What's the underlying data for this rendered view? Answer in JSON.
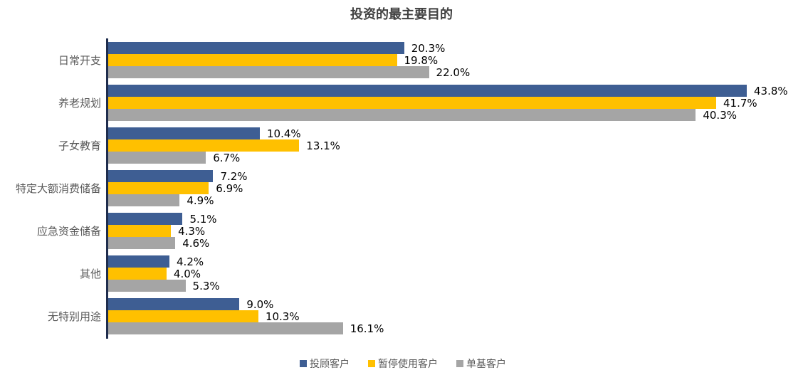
{
  "chart_data": {
    "type": "bar",
    "orientation": "horizontal",
    "title": "投资的最主要目的",
    "xlabel": "",
    "ylabel": "",
    "categories": [
      "日常开支",
      "养老规划",
      "子女教育",
      "特定大额消费储备",
      "应急资金储备",
      "其他",
      "无特别用途"
    ],
    "series": [
      {
        "name": "投顾客户",
        "color": "#3e5e93",
        "values": [
          20.3,
          43.8,
          10.4,
          7.2,
          5.1,
          4.2,
          9.0
        ],
        "labels": [
          "20.3%",
          "43.8%",
          "10.4%",
          "7.2%",
          "5.1%",
          "4.2%",
          "9.0%"
        ]
      },
      {
        "name": "暂停使用客户",
        "color": "#ffc000",
        "values": [
          19.8,
          41.7,
          13.1,
          6.9,
          4.3,
          4.0,
          10.3
        ],
        "labels": [
          "19.8%",
          "41.7%",
          "13.1%",
          "6.9%",
          "4.3%",
          "4.0%",
          "10.3%"
        ]
      },
      {
        "name": "单基客户",
        "color": "#a5a5a5",
        "values": [
          22.0,
          40.3,
          6.7,
          4.9,
          4.6,
          5.3,
          16.1
        ],
        "labels": [
          "22.0%",
          "40.3%",
          "6.7%",
          "4.9%",
          "4.6%",
          "5.3%",
          "16.1%"
        ]
      }
    ],
    "value_format": "percent",
    "grid": false,
    "legend_position": "bottom",
    "xlim": [
      0,
      47
    ]
  },
  "title": "投资的最主要目的",
  "legend": [
    {
      "label": "投顾客户",
      "color": "#3e5e93"
    },
    {
      "label": "暂停使用客户",
      "color": "#ffc000"
    },
    {
      "label": "单基客户",
      "color": "#a5a5a5"
    }
  ]
}
